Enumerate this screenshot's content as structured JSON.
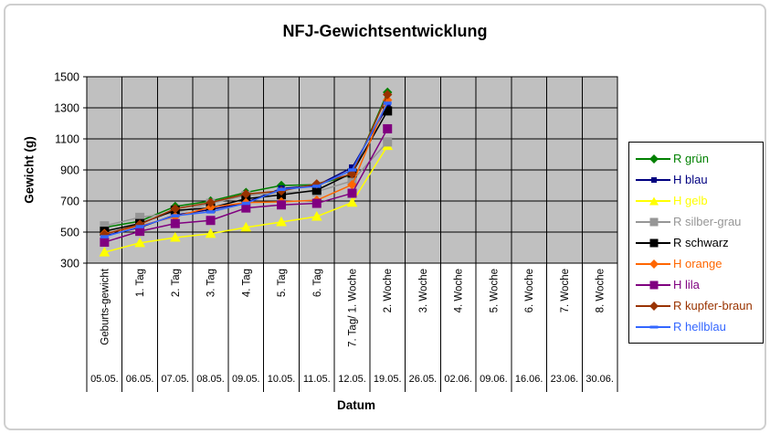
{
  "frame": {
    "border_color": "#cfcfcf",
    "background": "#ffffff"
  },
  "chart_data": {
    "type": "line",
    "title": "NFJ-Gewichtsentwicklung",
    "xlabel": "Datum",
    "ylabel": "Gewicht (g)",
    "ylim": [
      300,
      1500
    ],
    "yticks": [
      300,
      500,
      700,
      900,
      1100,
      1300,
      1500
    ],
    "grid": true,
    "plot_bg": "#c0c0c0",
    "gridline_color": "#000000",
    "legend_position": "right",
    "categories": [
      "Geburts-gewicht",
      "1. Tag",
      "2. Tag",
      "3. Tag",
      "4. Tag",
      "5. Tag",
      "6. Tag",
      "7. Tag/ 1. Woche",
      "2. Woche",
      "3. Woche",
      "4. Woche",
      "5. Woche",
      "6. Woche",
      "7. Woche",
      "8. Woche"
    ],
    "dates": [
      "05.05.",
      "06.05.",
      "07.05.",
      "08.05.",
      "09.05.",
      "10.05.",
      "11.05.",
      "12.05.",
      "19.05.",
      "26.05.",
      "02.06.",
      "09.06.",
      "16.06.",
      "23.06.",
      "30.06."
    ],
    "series": [
      {
        "name": "R grün",
        "color": "#008000",
        "marker": "diamond",
        "values": [
          530,
          570,
          665,
          700,
          755,
          800,
          805,
          870,
          1400,
          null,
          null,
          null,
          null,
          null,
          null
        ]
      },
      {
        "name": "H blau",
        "color": "#000080",
        "marker": "square-small",
        "values": [
          475,
          530,
          610,
          645,
          690,
          780,
          800,
          915,
          1310,
          null,
          null,
          null,
          null,
          null,
          null
        ]
      },
      {
        "name": "H gelb",
        "color": "#ffff00",
        "marker": "triangle",
        "values": [
          370,
          430,
          465,
          490,
          530,
          565,
          600,
          690,
          1055,
          null,
          null,
          null,
          null,
          null,
          null
        ]
      },
      {
        "name": "R silber-grau",
        "color": "#969696",
        "marker": "square",
        "values": [
          540,
          595,
          625,
          685,
          735,
          755,
          760,
          830,
          1080,
          null,
          null,
          null,
          null,
          null,
          null
        ]
      },
      {
        "name": "R schwarz",
        "color": "#000000",
        "marker": "square",
        "values": [
          505,
          555,
          640,
          655,
          715,
          740,
          770,
          880,
          1280,
          null,
          null,
          null,
          null,
          null,
          null
        ]
      },
      {
        "name": "H orange",
        "color": "#ff6600",
        "marker": "diamond",
        "values": [
          490,
          540,
          600,
          660,
          690,
          695,
          705,
          805,
          1350,
          null,
          null,
          null,
          null,
          null,
          null
        ]
      },
      {
        "name": "H lila",
        "color": "#800080",
        "marker": "square",
        "values": [
          435,
          505,
          555,
          575,
          655,
          675,
          685,
          750,
          1165,
          null,
          null,
          null,
          null,
          null,
          null
        ]
      },
      {
        "name": "R kupfer-braun",
        "color": "#993300",
        "marker": "diamond",
        "values": [
          485,
          550,
          650,
          690,
          745,
          765,
          810,
          875,
          1385,
          null,
          null,
          null,
          null,
          null,
          null
        ]
      },
      {
        "name": "R hellblau",
        "color": "#3366ff",
        "marker": "dash",
        "values": [
          470,
          535,
          605,
          630,
          685,
          775,
          795,
          900,
          1330,
          null,
          null,
          null,
          null,
          null,
          null
        ]
      }
    ]
  }
}
